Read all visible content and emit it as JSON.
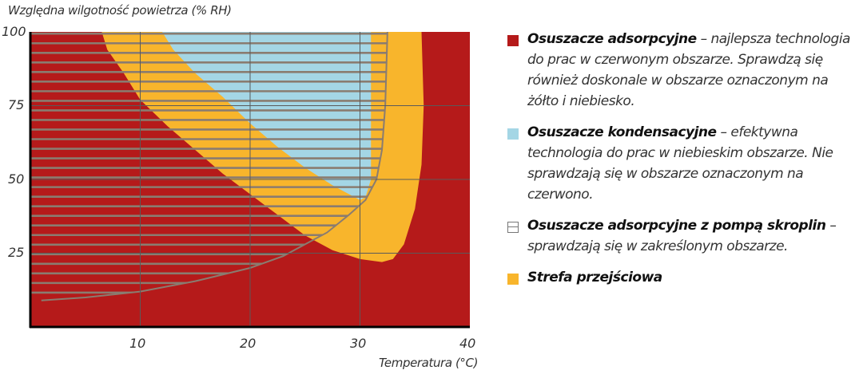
{
  "chart_data": {
    "type": "area",
    "ylabel": "Względna wilgotność powietrza (% RH)",
    "xlabel": "Temperatura (°C)",
    "xlim": [
      0,
      40
    ],
    "ylim": [
      0,
      100
    ],
    "xticks": [
      "10",
      "20",
      "30",
      "40"
    ],
    "yticks": [
      "100",
      "75",
      "50",
      "25"
    ],
    "grid": true,
    "legend_placement": "right",
    "colors": {
      "red": "#b51a1a",
      "yellow": "#f8b52c",
      "blue": "#a4d6e5",
      "hatch": "#8a7c70",
      "grid": "#5a5a5a"
    },
    "regions": {
      "background_red": "Osuszacze adsorpcyjne",
      "yellow": [
        [
          6.5,
          100
        ],
        [
          7,
          94
        ],
        [
          8.5,
          86
        ],
        [
          10,
          77
        ],
        [
          12.5,
          68
        ],
        [
          15,
          60
        ],
        [
          17.5,
          52
        ],
        [
          20,
          45
        ],
        [
          22.5,
          38
        ],
        [
          25,
          31
        ],
        [
          27.5,
          26
        ],
        [
          30,
          23
        ],
        [
          32,
          22
        ],
        [
          33,
          23
        ],
        [
          34,
          28
        ],
        [
          35,
          40
        ],
        [
          35.6,
          55
        ],
        [
          35.8,
          75
        ],
        [
          35.6,
          100
        ]
      ],
      "blue": [
        [
          12,
          100
        ],
        [
          13,
          94
        ],
        [
          15,
          86
        ],
        [
          17.5,
          78
        ],
        [
          20,
          69
        ],
        [
          22.5,
          61
        ],
        [
          25,
          54
        ],
        [
          27.5,
          48
        ],
        [
          30,
          43
        ],
        [
          30.5,
          44
        ],
        [
          31,
          50
        ],
        [
          31,
          100
        ]
      ],
      "hatch_boundary": [
        [
          1,
          9
        ],
        [
          5,
          10
        ],
        [
          10,
          12
        ],
        [
          15,
          15.5
        ],
        [
          20,
          20
        ],
        [
          23,
          24
        ],
        [
          25,
          28
        ],
        [
          27,
          32
        ],
        [
          29,
          38
        ],
        [
          30.5,
          43
        ],
        [
          31.5,
          50
        ],
        [
          32,
          60
        ],
        [
          32.3,
          75
        ],
        [
          32.5,
          100
        ]
      ]
    }
  },
  "legend": [
    {
      "color": "#b51a1a",
      "title": "Osuszacze adsorpcyjne",
      "text": " – najlepsza technologia do prac w czerwonym obszarze. Sprawdzą się również doskonale  w obszarze oznaczonym na żółto i niebiesko."
    },
    {
      "color": "#a4d6e5",
      "title": "Osuszacze kondensacyjne",
      "text": " – efektywna technologia do prac w niebieskim obszarze. Nie sprawdzają się w obszarze oznaczonym na czerwono."
    },
    {
      "color": "hatch",
      "title": "Osuszacze adsorpcyjne z pompą skroplin",
      "text": " – sprawdzają się w zakreślonym obszarze."
    },
    {
      "color": "#f8b52c",
      "title": "Strefa przejściowa",
      "text": ""
    }
  ]
}
